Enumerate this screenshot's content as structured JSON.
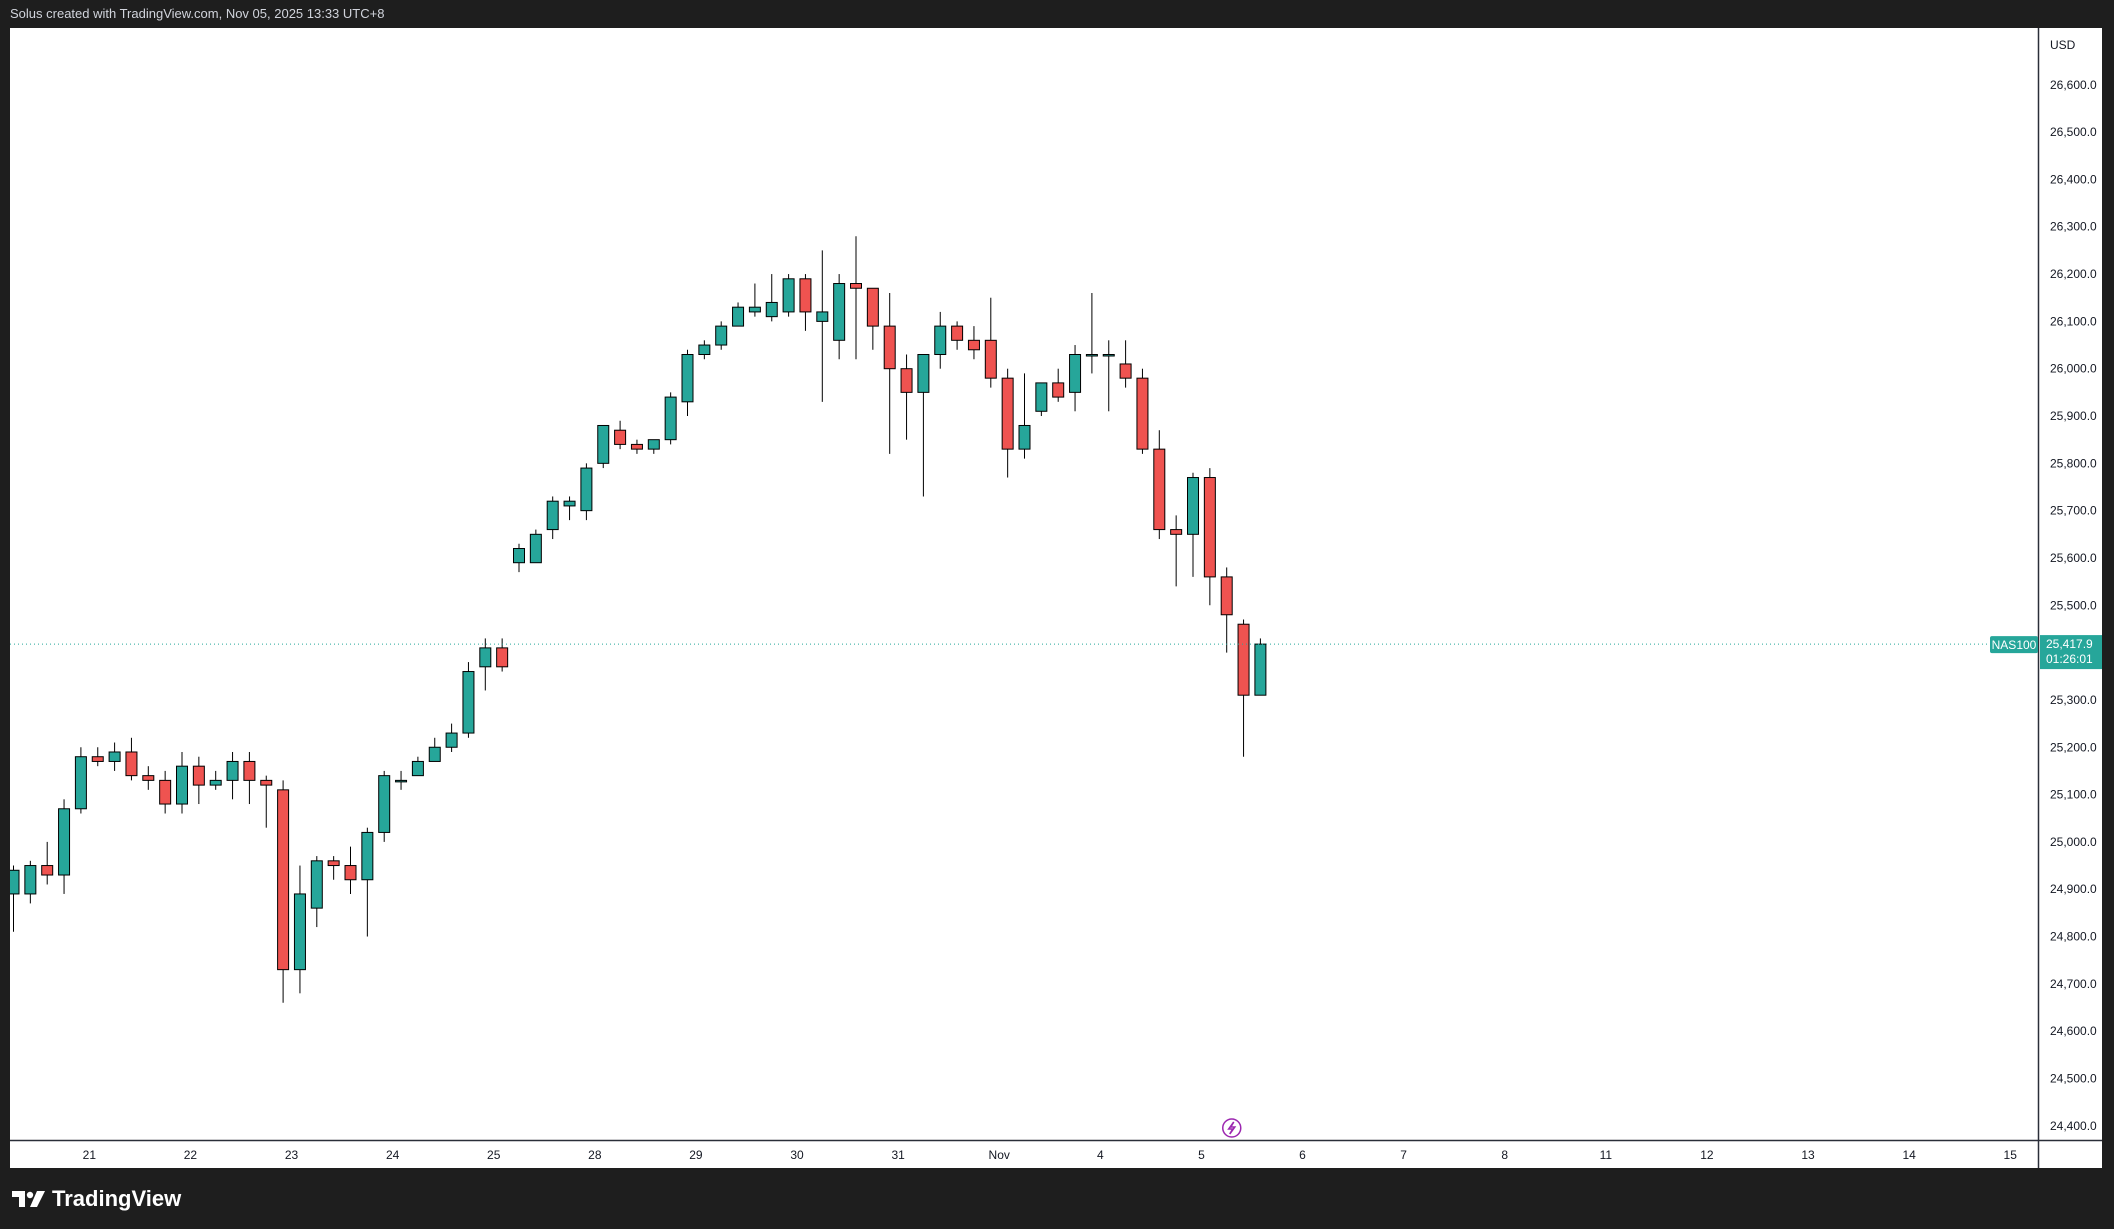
{
  "header": {
    "caption": "Solus created with TradingView.com, Nov 05, 2025 13:33 UTC+8"
  },
  "footer": {
    "brand": "TradingView"
  },
  "price_scale": {
    "currency": "USD"
  },
  "last_price": {
    "symbol": "NAS100",
    "price": "25,417.9",
    "countdown": "01:26:01"
  },
  "colors": {
    "up": "#26a69a",
    "down": "#ef5350",
    "wick": "#000000",
    "last_line": "#26a69a",
    "event": "#9c27b0"
  },
  "icons": {
    "event_marker": "lightning-icon",
    "logo": "tradingview-logo-icon"
  },
  "chart_data": {
    "type": "candlestick",
    "symbol": "NAS100",
    "ylim": [
      24370,
      26720
    ],
    "yticks": [
      24400,
      24500,
      24600,
      24700,
      24800,
      24900,
      25000,
      25100,
      25200,
      25300,
      25400,
      25500,
      25600,
      25700,
      25800,
      25900,
      26000,
      26100,
      26200,
      26300,
      26400,
      26500,
      26600
    ],
    "ytick_labels": [
      "24,400.0",
      "24,500.0",
      "24,600.0",
      "24,700.0",
      "24,800.0",
      "24,900.0",
      "25,000.0",
      "25,100.0",
      "25,200.0",
      "25,300.0",
      "25,400.0",
      "25,500.0",
      "25,600.0",
      "25,700.0",
      "25,800.0",
      "25,900.0",
      "26,000.0",
      "26,100.0",
      "26,200.0",
      "26,300.0",
      "26,400.0",
      "26,500.0",
      "26,600.0"
    ],
    "xticks": [
      {
        "label": "21",
        "bar": 4.5
      },
      {
        "label": "22",
        "bar": 10.5
      },
      {
        "label": "23",
        "bar": 16.5
      },
      {
        "label": "24",
        "bar": 22.5
      },
      {
        "label": "25",
        "bar": 28.5
      },
      {
        "label": "28",
        "bar": 34.5
      },
      {
        "label": "29",
        "bar": 40.5
      },
      {
        "label": "30",
        "bar": 46.5
      },
      {
        "label": "31",
        "bar": 52.5
      },
      {
        "label": "Nov",
        "bar": 58.5
      },
      {
        "label": "4",
        "bar": 64.5
      },
      {
        "label": "5",
        "bar": 70.5
      },
      {
        "label": "6",
        "bar": 76.5
      },
      {
        "label": "7",
        "bar": 82.5
      },
      {
        "label": "8",
        "bar": 88.5
      },
      {
        "label": "11",
        "bar": 94.5
      },
      {
        "label": "12",
        "bar": 100.5
      },
      {
        "label": "13",
        "bar": 106.5
      },
      {
        "label": "14",
        "bar": 112.5
      },
      {
        "label": "15",
        "bar": 118.5
      }
    ],
    "event_marker_bar": 72.3,
    "candles": [
      [
        24890,
        24940,
        24810,
        24950
      ],
      [
        24890,
        24950,
        24870,
        24960
      ],
      [
        24950,
        24930,
        24910,
        25000
      ],
      [
        24930,
        25070,
        24890,
        25090
      ],
      [
        25070,
        25180,
        25060,
        25200
      ],
      [
        25180,
        25170,
        25160,
        25200
      ],
      [
        25170,
        25190,
        25150,
        25210
      ],
      [
        25190,
        25140,
        25130,
        25220
      ],
      [
        25140,
        25130,
        25110,
        25160
      ],
      [
        25130,
        25080,
        25060,
        25150
      ],
      [
        25080,
        25160,
        25060,
        25190
      ],
      [
        25160,
        25120,
        25080,
        25180
      ],
      [
        25120,
        25130,
        25110,
        25150
      ],
      [
        25130,
        25170,
        25090,
        25190
      ],
      [
        25170,
        25130,
        25080,
        25190
      ],
      [
        25130,
        25120,
        25030,
        25140
      ],
      [
        25110,
        24730,
        24660,
        25130
      ],
      [
        24730,
        24890,
        24680,
        24950
      ],
      [
        24860,
        24960,
        24820,
        24970
      ],
      [
        24960,
        24950,
        24920,
        24970
      ],
      [
        24950,
        24920,
        24890,
        24990
      ],
      [
        24920,
        25020,
        24800,
        25030
      ],
      [
        25020,
        25140,
        25000,
        25150
      ],
      [
        25130,
        25130,
        25110,
        25150
      ],
      [
        25140,
        25170,
        25140,
        25180
      ],
      [
        25170,
        25200,
        25170,
        25220
      ],
      [
        25200,
        25230,
        25190,
        25250
      ],
      [
        25230,
        25360,
        25220,
        25380
      ],
      [
        25370,
        25410,
        25320,
        25430
      ],
      [
        25410,
        25370,
        25360,
        25430
      ],
      [
        25590,
        25620,
        25570,
        25630
      ],
      [
        25590,
        25650,
        25590,
        25660
      ],
      [
        25660,
        25720,
        25640,
        25730
      ],
      [
        25710,
        25720,
        25680,
        25730
      ],
      [
        25700,
        25790,
        25680,
        25800
      ],
      [
        25800,
        25880,
        25790,
        25880
      ],
      [
        25870,
        25840,
        25830,
        25890
      ],
      [
        25840,
        25830,
        25820,
        25850
      ],
      [
        25830,
        25850,
        25820,
        25850
      ],
      [
        25850,
        25940,
        25840,
        25950
      ],
      [
        25930,
        26030,
        25900,
        26040
      ],
      [
        26030,
        26050,
        26020,
        26060
      ],
      [
        26050,
        26090,
        26040,
        26100
      ],
      [
        26090,
        26130,
        26090,
        26140
      ],
      [
        26120,
        26130,
        26110,
        26180
      ],
      [
        26110,
        26140,
        26100,
        26200
      ],
      [
        26120,
        26190,
        26110,
        26200
      ],
      [
        26190,
        26120,
        26080,
        26200
      ],
      [
        26100,
        26120,
        25930,
        26250
      ],
      [
        26060,
        26180,
        26020,
        26200
      ],
      [
        26180,
        26170,
        26020,
        26280
      ],
      [
        26170,
        26090,
        26040,
        26160
      ],
      [
        26090,
        26000,
        25820,
        26160
      ],
      [
        26000,
        25950,
        25850,
        26030
      ],
      [
        25950,
        26030,
        25730,
        26030
      ],
      [
        26030,
        26090,
        26000,
        26120
      ],
      [
        26090,
        26060,
        26040,
        26100
      ],
      [
        26060,
        26040,
        26020,
        26090
      ],
      [
        26060,
        25980,
        25960,
        26150
      ],
      [
        25980,
        25830,
        25770,
        26000
      ],
      [
        25830,
        25880,
        25810,
        25990
      ],
      [
        25910,
        25970,
        25900,
        25970
      ],
      [
        25970,
        25940,
        25930,
        26000
      ],
      [
        25950,
        26030,
        25910,
        26050
      ],
      [
        26030,
        26030,
        25990,
        26160
      ],
      [
        26030,
        26030,
        25910,
        26060
      ],
      [
        26010,
        25980,
        25960,
        26060
      ],
      [
        25980,
        25830,
        25820,
        26000
      ],
      [
        25830,
        25660,
        25640,
        25870
      ],
      [
        25660,
        25650,
        25540,
        25690
      ],
      [
        25650,
        25770,
        25560,
        25780
      ],
      [
        25770,
        25560,
        25500,
        25790
      ],
      [
        25560,
        25480,
        25400,
        25580
      ],
      [
        25460,
        25310,
        25180,
        25470
      ],
      [
        25310,
        25418,
        25310,
        25430
      ]
    ]
  }
}
